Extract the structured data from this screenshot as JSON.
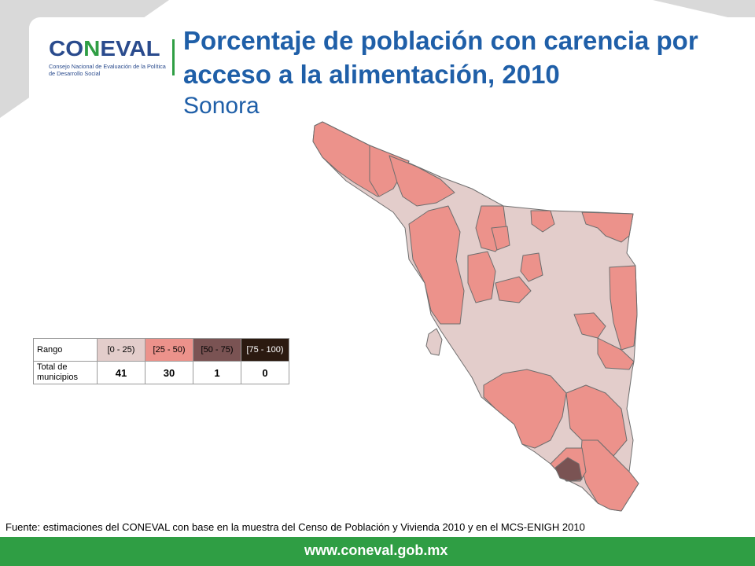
{
  "header": {
    "logo_text": "CONEVAL",
    "logo_subtitle": "Consejo Nacional de Evaluación de la Política de Desarrollo Social",
    "title": "Porcentaje de población con carencia por acceso a la alimentación, 2010",
    "subtitle": "Sonora"
  },
  "legend": {
    "row1_label": "Rango",
    "row2_label": "Total de municipios",
    "classes": [
      {
        "range": "[0 - 25)",
        "count": "41",
        "color": "#e3cdcb",
        "text_color": "#000000"
      },
      {
        "range": "[25 - 50)",
        "count": "30",
        "color": "#ec928b",
        "text_color": "#000000"
      },
      {
        "range": "[50 - 75)",
        "count": "1",
        "color": "#7a5353",
        "text_color": "#000000"
      },
      {
        "range": "[75 - 100)",
        "count": "0",
        "color": "#2b1a10",
        "text_color": "#ffffff"
      }
    ]
  },
  "map": {
    "region": "Sonora",
    "border_color": "#6e6e6e"
  },
  "source_note": "Fuente: estimaciones del CONEVAL con base en la muestra del Censo de Población y Vivienda 2010 y en el MCS-ENIGH 2010",
  "footer": {
    "url": "www.coneval.gob.mx",
    "bar_color": "#2f9e44"
  }
}
